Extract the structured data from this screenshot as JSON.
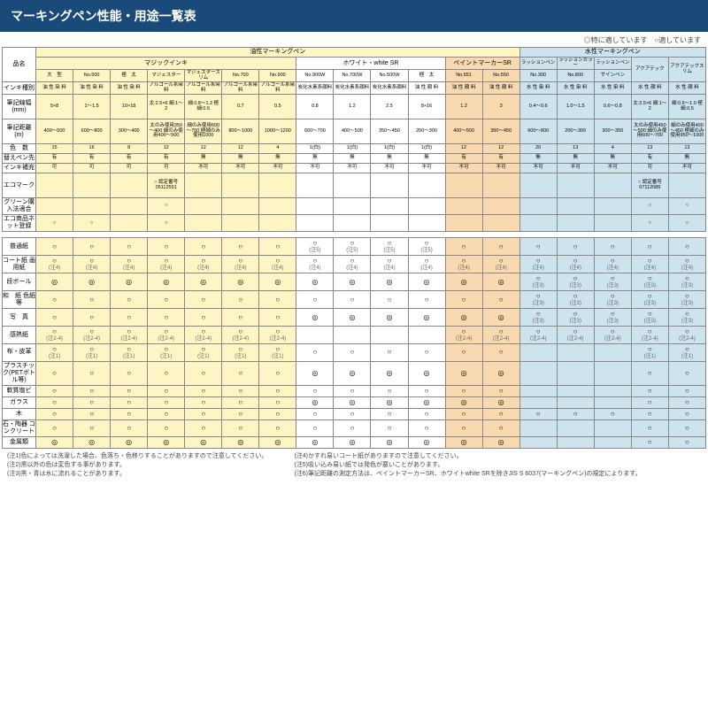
{
  "title": "マーキングペン性能・用途一覧表",
  "legend": "◎特に適しています　○適しています",
  "top_groups": {
    "oil": "油性マーキングペン",
    "water": "水性マーキングペン"
  },
  "sub_groups": {
    "magic": "マジックインキ",
    "white": "ホワイト・white SR",
    "paint": "ペイントマーカーSR",
    "lp": "ラッションペン",
    "lc": "ラッションカラー",
    "lpen": "ラッションペン",
    "aqua": "アクアテック",
    "aquas": "アクアテックスリム"
  },
  "col_labels": [
    "大　型",
    "No.500",
    "極　太",
    "マジェスター",
    "マジェスタースリム",
    "No.700",
    "No.900",
    "No.900W",
    "No.700W",
    "No.500W",
    "極　太",
    "No.551",
    "No.550",
    "No.300",
    "No.800",
    "サインペン",
    "",
    ""
  ],
  "row_hdr": {
    "hinmei": "品名",
    "ink_type": "インキ種別",
    "line_w": "筆記線幅 (mm)",
    "dist": "筆記距離 (m)",
    "colors": "色　数",
    "refill_tip": "替えペン先",
    "ink_refill": "インキ補充",
    "eco": "エコマーク",
    "green": "グリーン購入法適合",
    "econet": "エコ商品ネット登録"
  },
  "ink_types": [
    "油 性 染 料",
    "油 性 染 料",
    "油 性 染 料",
    "アルコール系染料",
    "アルコール系染料",
    "アルコール系染料",
    "アルコール系染料",
    "炭化水素系顔料",
    "炭化水素系顔料",
    "炭化水素系顔料",
    "油 性 顔 料",
    "油 性 顔 料",
    "油 性 顔 料",
    "水 性 染 料",
    "水 性 染 料",
    "水 性 染 料",
    "水 性 顔 料",
    "水 性 顔 料"
  ],
  "line_w": [
    "5×8",
    "1～1.5",
    "10×18",
    "太:2.5×6 細:1～2",
    "細:0.8～1.2 極細:0.5",
    "0.7",
    "0.5",
    "0.8",
    "1.2",
    "2.5",
    "8×16",
    "1.2",
    "3",
    "0.4～0.6",
    "1.0～1.5",
    "0.6～0.8",
    "太:2.5×6 細:1～2",
    "細:0.6～1.0 極細:0.5"
  ],
  "dist": [
    "400～500",
    "600～800",
    "300～400",
    "太のみ使用350～400 細のみ使用400～500",
    "細のみ使用600～700 極細のみ使用1000",
    "800～1000",
    "1000～1200",
    "600～700",
    "400～500",
    "350～450",
    "200～300",
    "400～500",
    "350～450",
    "600～800",
    "200～300",
    "300～350",
    "太のみ使用450～500 細のみ使用600～700",
    "細のみ使用400～450 極細のみ使用950～1000"
  ],
  "colors": [
    "15",
    "16",
    "8",
    "12",
    "12",
    "12",
    "4",
    "1(白)",
    "1(白)",
    "1(白)",
    "1(白)",
    "12",
    "12",
    "20",
    "13",
    "4",
    "13",
    "13"
  ],
  "tip": [
    "有",
    "有",
    "有",
    "有",
    "無",
    "無",
    "無",
    "無",
    "無",
    "無",
    "無",
    "有",
    "有",
    "無",
    "無",
    "無",
    "有",
    "無"
  ],
  "refill": [
    "可",
    "可",
    "可",
    "可",
    "不可",
    "不可",
    "不可",
    "不可",
    "不可",
    "不可",
    "不可",
    "不可",
    "不可",
    "不可",
    "不可",
    "不可",
    "可",
    "不可"
  ],
  "eco_row": [
    "",
    "",
    "",
    "○ 認定番号05112551",
    "",
    "",
    "",
    "",
    "",
    "",
    "",
    "",
    "",
    "",
    "",
    "",
    "○ 認定番号07112089",
    ""
  ],
  "green_row": [
    "",
    "",
    "",
    "○",
    "",
    "",
    "",
    "",
    "",
    "",
    "",
    "",
    "",
    "",
    "",
    "",
    "○",
    "○"
  ],
  "econet_row": [
    "○",
    "○",
    "",
    "○",
    "",
    "",
    "",
    "",
    "",
    "",
    "",
    "",
    "",
    "",
    "",
    "",
    "○",
    "○"
  ],
  "materials": [
    {
      "n": "普通紙",
      "v": [
        "○",
        "○",
        "○",
        "○",
        "○",
        "○",
        "○",
        "○ (注5)",
        "○ (注5)",
        "○ (注5)",
        "○ (注5)",
        "○",
        "○",
        "○",
        "○",
        "○",
        "○",
        "○"
      ]
    },
    {
      "n": "コート紙 画用紙",
      "v": [
        "○ (注4)",
        "○ (注4)",
        "○ (注4)",
        "○ (注4)",
        "○ (注4)",
        "○ (注4)",
        "○ (注4)",
        "○ (注4)",
        "○ (注4)",
        "○ (注4)",
        "○ (注4)",
        "○ (注4)",
        "○ (注4)",
        "○ (注4)",
        "○ (注4)",
        "○ (注4)",
        "○ (注4)",
        "○ (注4)"
      ]
    },
    {
      "n": "段ボール",
      "v": [
        "◎",
        "◎",
        "◎",
        "◎",
        "◎",
        "◎",
        "◎",
        "◎",
        "◎",
        "◎",
        "◎",
        "◎",
        "◎",
        "○ (注3)",
        "○ (注3)",
        "○ (注3)",
        "○ (注3)",
        "○ (注3)"
      ]
    },
    {
      "n": "和　紙 色紙等",
      "v": [
        "○",
        "○",
        "○",
        "○",
        "○",
        "○",
        "○",
        "○",
        "○",
        "○",
        "○",
        "○",
        "○",
        "○ (注3)",
        "○ (注3)",
        "○ (注3)",
        "○ (注3)",
        "○ (注3)"
      ]
    },
    {
      "n": "写　真",
      "v": [
        "○",
        "○",
        "○",
        "○",
        "○",
        "○",
        "○",
        "◎",
        "◎",
        "◎",
        "◎",
        "◎",
        "◎",
        "○ (注3)",
        "○ (注3)",
        "○ (注3)",
        "○ (注3)",
        "○ (注3)"
      ]
    },
    {
      "n": "感熱紙",
      "v": [
        "○ (注2-4)",
        "○ (注2-4)",
        "○ (注2-4)",
        "○ (注2-4)",
        "○ (注2-4)",
        "○ (注2-4)",
        "○ (注2-4)",
        "",
        "",
        "",
        "",
        "○ (注2-4)",
        "○ (注2-4)",
        "○ (注2-4)",
        "○ (注2-4)",
        "○ (注2-4)",
        "○ (注2-4)",
        "○ (注2-4)"
      ]
    },
    {
      "n": "布・皮革",
      "v": [
        "○ (注1)",
        "○ (注1)",
        "○ (注1)",
        "○ (注1)",
        "○ (注1)",
        "○ (注1)",
        "○ (注1)",
        "○",
        "○",
        "○",
        "○",
        "○",
        "○",
        "",
        "",
        "",
        "○ (注1)",
        "○ (注1)"
      ]
    },
    {
      "n": "プラスチック(PETボトル等)",
      "v": [
        "○",
        "○",
        "○",
        "○",
        "○",
        "○",
        "○",
        "◎",
        "◎",
        "◎",
        "◎",
        "◎",
        "◎",
        "",
        "",
        "",
        "○",
        "○"
      ]
    },
    {
      "n": "軟質塩ビ",
      "v": [
        "○",
        "○",
        "○",
        "○",
        "○",
        "○",
        "○",
        "○",
        "○",
        "○",
        "○",
        "○",
        "○",
        "",
        "",
        "",
        "○",
        "○"
      ]
    },
    {
      "n": "ガラス",
      "v": [
        "○",
        "○",
        "○",
        "○",
        "○",
        "○",
        "○",
        "◎",
        "◎",
        "◎",
        "◎",
        "◎",
        "◎",
        "",
        "",
        "",
        "○",
        "○"
      ]
    },
    {
      "n": "木",
      "v": [
        "○",
        "○",
        "○",
        "○",
        "○",
        "○",
        "○",
        "○",
        "○",
        "○",
        "○",
        "○",
        "○",
        "○",
        "○",
        "○",
        "○",
        "○"
      ]
    },
    {
      "n": "石・陶器 コンクリート",
      "v": [
        "○",
        "○",
        "○",
        "○",
        "○",
        "○",
        "○",
        "○",
        "○",
        "○",
        "○",
        "○",
        "○",
        "",
        "",
        "",
        "○",
        "○"
      ]
    },
    {
      "n": "金属類",
      "v": [
        "◎",
        "◎",
        "◎",
        "◎",
        "◎",
        "◎",
        "◎",
        "◎",
        "◎",
        "◎",
        "◎",
        "◎",
        "◎",
        "",
        "",
        "",
        "○",
        "○"
      ]
    }
  ],
  "bg_map": [
    "y",
    "y",
    "y",
    "y",
    "y",
    "y",
    "y",
    "w",
    "w",
    "w",
    "w",
    "o",
    "o",
    "b",
    "b",
    "b",
    "b",
    "b"
  ],
  "notes": [
    "(注1)色によっては洗濯した場合、色落ち・色移りすることがありますので注意してください。",
    "(注2)黒以外の色は変色する事があります。",
    "(注3)黒・青は水に流れることがあります。",
    "(注4)かすれ易いコート紙がありますので注意してください。",
    "(注5)吸い込み易い紙では発色が悪いことがあります。",
    "(注6)筆記距離の測定方法は、ペイントマーカーSR、ホワイトwhite SRを除きJIS S 6037(マーキングペン)の規定によります。"
  ]
}
